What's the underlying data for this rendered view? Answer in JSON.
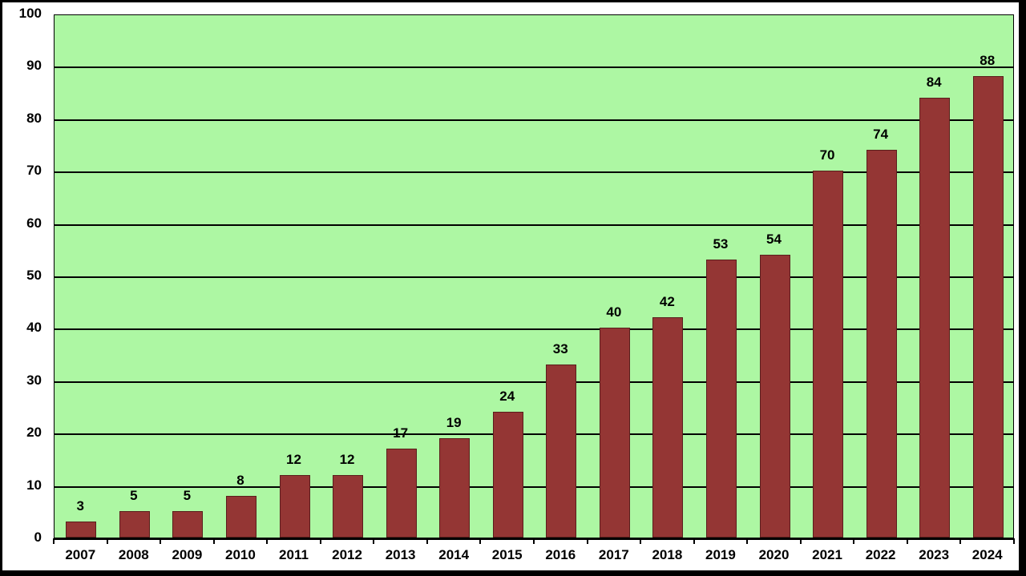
{
  "chart_data": {
    "type": "bar",
    "title": "",
    "xlabel": "",
    "ylabel": "",
    "ylim": [
      0,
      100
    ],
    "yticks": [
      0,
      10,
      20,
      30,
      40,
      50,
      60,
      70,
      80,
      90,
      100
    ],
    "grid": true,
    "legend": null,
    "categories": [
      "2007",
      "2008",
      "2009",
      "2010",
      "2011",
      "2012",
      "2013",
      "2014",
      "2015",
      "2016",
      "2017",
      "2018",
      "2019",
      "2020",
      "2021",
      "2022",
      "2023",
      "2024"
    ],
    "values": [
      3,
      5,
      5,
      8,
      12,
      12,
      17,
      19,
      24,
      33,
      40,
      42,
      53,
      54,
      70,
      74,
      84,
      88
    ],
    "data_labels": [
      "3",
      "5",
      "5",
      "8",
      "12",
      "12",
      "17",
      "19",
      "24",
      "33",
      "40",
      "42",
      "53",
      "54",
      "70",
      "74",
      "84",
      "88"
    ],
    "colors": {
      "bar": "#943634",
      "plot_background": "#adf7a3",
      "page_background": "#ffffff",
      "frame": "#000000"
    }
  }
}
